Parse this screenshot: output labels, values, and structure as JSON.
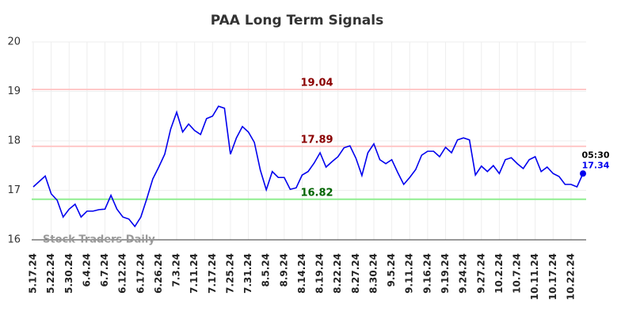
{
  "chart_data": {
    "type": "line",
    "title": "PAA Long Term Signals",
    "watermark": "Stock Traders Daily",
    "categories": [
      "5.17.24",
      null,
      null,
      "5.22.24",
      null,
      null,
      "5.30.24",
      null,
      null,
      "6.4.24",
      null,
      null,
      "6.7.24",
      null,
      null,
      "6.12.24",
      null,
      null,
      "6.17.24",
      null,
      null,
      "6.26.24",
      null,
      null,
      "7.3.24",
      null,
      null,
      "7.11.24",
      null,
      null,
      "7.17.24",
      null,
      null,
      "7.25.24",
      null,
      null,
      "7.31.24",
      null,
      null,
      "8.5.24",
      null,
      null,
      "8.9.24",
      null,
      null,
      "8.14.24",
      null,
      null,
      "8.19.24",
      null,
      null,
      "8.22.24",
      null,
      null,
      "8.27.24",
      null,
      null,
      "8.30.24",
      null,
      null,
      "9.5.24",
      null,
      null,
      "9.11.24",
      null,
      null,
      "9.16.24",
      null,
      null,
      "9.19.24",
      null,
      null,
      "9.24.24",
      null,
      null,
      "9.27.24",
      null,
      null,
      "10.2.24",
      null,
      null,
      "10.7.24",
      null,
      null,
      "10.11.24",
      null,
      null,
      "10.17.24",
      null,
      null,
      "10.22.24",
      null,
      null
    ],
    "series": [
      {
        "name": "PAA",
        "color": "#0000ee",
        "values": [
          17.07,
          17.18,
          17.29,
          16.93,
          16.8,
          16.46,
          16.62,
          16.72,
          16.46,
          16.58,
          16.58,
          16.61,
          16.62,
          16.9,
          16.62,
          16.46,
          16.42,
          16.27,
          16.46,
          16.83,
          17.23,
          17.47,
          17.73,
          18.24,
          18.58,
          18.18,
          18.34,
          18.21,
          18.13,
          18.45,
          18.5,
          18.7,
          18.66,
          17.73,
          18.06,
          18.29,
          18.18,
          17.97,
          17.41,
          17.01,
          17.38,
          17.26,
          17.26,
          17.02,
          17.05,
          17.31,
          17.38,
          17.55,
          17.76,
          17.47,
          17.58,
          17.68,
          17.86,
          17.9,
          17.65,
          17.3,
          17.76,
          17.94,
          17.62,
          17.54,
          17.62,
          17.36,
          17.12,
          17.26,
          17.42,
          17.71,
          17.79,
          17.79,
          17.68,
          17.87,
          17.76,
          18.02,
          18.06,
          18.02,
          17.31,
          17.49,
          17.38,
          17.5,
          17.34,
          17.62,
          17.66,
          17.54,
          17.44,
          17.62,
          17.68,
          17.38,
          17.47,
          17.34,
          17.28,
          17.12,
          17.12,
          17.07,
          17.34
        ]
      }
    ],
    "reference_lines": [
      {
        "value": 19.04,
        "color": "#ffc8c8",
        "text_color": "#8b0000"
      },
      {
        "value": 17.89,
        "color": "#ffc8c8",
        "text_color": "#8b0000"
      },
      {
        "value": 16.82,
        "color": "#90ee90",
        "text_color": "#006400"
      }
    ],
    "last_time": "05:30",
    "ylim": [
      16,
      20
    ],
    "yticks": [
      16,
      17,
      18,
      19,
      20
    ],
    "grid": true
  }
}
